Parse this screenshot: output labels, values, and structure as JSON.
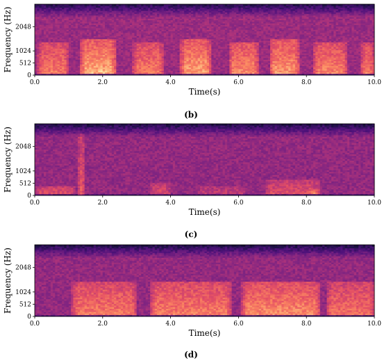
{
  "chart_data": [
    {
      "type": "heatmap",
      "kind": "spectrogram",
      "caption": "(b)",
      "xlabel": "Time(s)",
      "ylabel": "Frequency (Hz)",
      "xlim": [
        0,
        10
      ],
      "ylim": [
        0,
        3000
      ],
      "x_ticks": [
        0,
        2,
        4,
        6,
        8,
        10
      ],
      "x_tick_labels": [
        "0.0",
        "2.0",
        "4.0",
        "6.0",
        "8.0",
        "10.0"
      ],
      "y_ticks": [
        0,
        512,
        1024,
        2048
      ],
      "y_tick_labels": [
        "0",
        "512",
        "1024",
        "2048"
      ],
      "colormap": "magma",
      "background_energy": 0.52,
      "bands": [
        {
          "t0": 0.1,
          "t1": 1.0,
          "f0": 80,
          "f1": 1400,
          "energy": 0.3
        },
        {
          "t0": 1.35,
          "t1": 2.4,
          "f0": 80,
          "f1": 1500,
          "energy": 0.4
        },
        {
          "t0": 2.9,
          "t1": 3.8,
          "f0": 80,
          "f1": 1400,
          "energy": 0.3
        },
        {
          "t0": 4.3,
          "t1": 5.2,
          "f0": 80,
          "f1": 1500,
          "energy": 0.38
        },
        {
          "t0": 5.7,
          "t1": 6.6,
          "f0": 80,
          "f1": 1400,
          "energy": 0.34
        },
        {
          "t0": 6.9,
          "t1": 7.8,
          "f0": 80,
          "f1": 1500,
          "energy": 0.36
        },
        {
          "t0": 8.2,
          "t1": 9.2,
          "f0": 80,
          "f1": 1400,
          "energy": 0.32
        },
        {
          "t0": 9.6,
          "t1": 10.0,
          "f0": 80,
          "f1": 1400,
          "energy": 0.32
        }
      ]
    },
    {
      "type": "heatmap",
      "kind": "spectrogram",
      "caption": "(c)",
      "xlabel": "Time(s)",
      "ylabel": "Frequency (Hz)",
      "xlim": [
        0,
        10
      ],
      "ylim": [
        0,
        3000
      ],
      "x_ticks": [
        0,
        2,
        4,
        6,
        8,
        10
      ],
      "x_tick_labels": [
        "0.0",
        "2.0",
        "4.0",
        "6.0",
        "8.0",
        "10.0"
      ],
      "y_ticks": [
        0,
        512,
        1024,
        2048
      ],
      "y_tick_labels": [
        "0",
        "512",
        "1024",
        "2048"
      ],
      "colormap": "magma",
      "background_energy": 0.5,
      "bands": [
        {
          "t0": 0.0,
          "t1": 1.2,
          "f0": 40,
          "f1": 420,
          "energy": 0.22
        },
        {
          "t0": 1.3,
          "t1": 1.45,
          "f0": 0,
          "f1": 2600,
          "energy": 0.32
        },
        {
          "t0": 3.4,
          "t1": 4.0,
          "f0": 40,
          "f1": 520,
          "energy": 0.2
        },
        {
          "t0": 4.8,
          "t1": 6.2,
          "f0": 40,
          "f1": 420,
          "energy": 0.14
        },
        {
          "t0": 6.8,
          "t1": 8.4,
          "f0": 40,
          "f1": 650,
          "energy": 0.22
        },
        {
          "t0": 8.1,
          "t1": 8.4,
          "f0": 40,
          "f1": 250,
          "energy": 0.15
        }
      ]
    },
    {
      "type": "heatmap",
      "kind": "spectrogram",
      "caption": "(d)",
      "xlabel": "Time(s)",
      "ylabel": "Frequency (Hz)",
      "xlim": [
        0,
        10
      ],
      "ylim": [
        0,
        3000
      ],
      "x_ticks": [
        0,
        2,
        4,
        6,
        8,
        10
      ],
      "x_tick_labels": [
        "0.0",
        "2.0",
        "4.0",
        "6.0",
        "8.0",
        "10.0"
      ],
      "y_ticks": [
        0,
        512,
        1024,
        2048
      ],
      "y_tick_labels": [
        "0",
        "512",
        "1024",
        "2048"
      ],
      "colormap": "magma",
      "background_energy": 0.5,
      "bands": [
        {
          "t0": 1.1,
          "t1": 3.0,
          "f0": 40,
          "f1": 1450,
          "energy": 0.32
        },
        {
          "t0": 3.4,
          "t1": 5.8,
          "f0": 40,
          "f1": 1450,
          "energy": 0.33
        },
        {
          "t0": 6.1,
          "t1": 8.4,
          "f0": 40,
          "f1": 1450,
          "energy": 0.36
        },
        {
          "t0": 8.6,
          "t1": 10.0,
          "f0": 40,
          "f1": 1450,
          "energy": 0.3
        }
      ]
    }
  ]
}
